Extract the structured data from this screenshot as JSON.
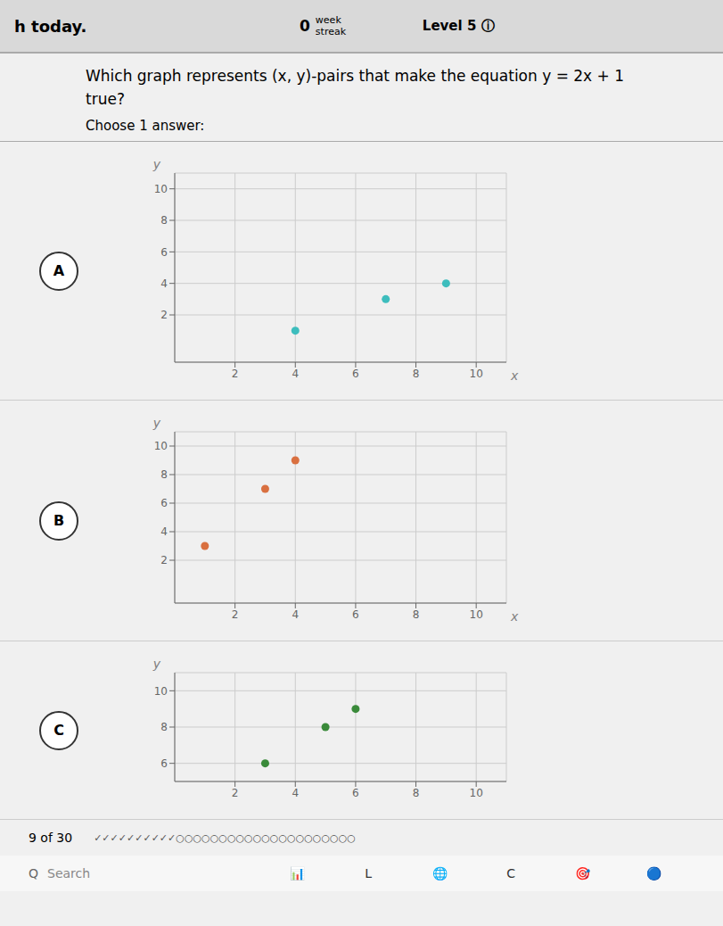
{
  "title": "Which graph represents (x, y)-pairs that make the equation y = 2x + 1\ntrue?",
  "subtitle": "Choose 1 answer:",
  "header_annotations": [
    "h today.",
    "0",
    "week",
    "streak",
    "Level 5 ⓘ"
  ],
  "footer_annotations": [
    "9 of 30",
    "✓✓✓✓✓✓✓✓✓✓○○○○○○○○○○○○○○○○○○○○○"
  ],
  "taskbar_annotations": [
    "Q",
    "Search",
    "📊",
    "L",
    "🌐",
    "C",
    "🎯",
    "🔵"
  ],
  "chart_data": [
    {
      "type": "scatter",
      "title": "A",
      "x_label": "x",
      "y_label": "y",
      "x": [
        4,
        7,
        9
      ],
      "values": [
        1,
        3,
        4
      ],
      "color": "#3dbdbd",
      "xlim": [
        0,
        11
      ],
      "ylim": [
        -1,
        11
      ],
      "xticks": [
        2,
        4,
        6,
        8,
        10
      ],
      "yticks": [
        2,
        4,
        6,
        8,
        10
      ],
      "grid": true
    },
    {
      "type": "scatter",
      "title": "B",
      "x_label": "x",
      "y_label": "y",
      "x": [
        1,
        3,
        4
      ],
      "values": [
        3,
        7,
        9
      ],
      "color": "#d97040",
      "xlim": [
        0,
        11
      ],
      "ylim": [
        -1,
        11
      ],
      "xticks": [
        2,
        4,
        6,
        8,
        10
      ],
      "yticks": [
        2,
        4,
        6,
        8,
        10
      ],
      "grid": true
    },
    {
      "type": "scatter",
      "title": "C",
      "y_label": "y",
      "x": [
        3,
        5,
        6
      ],
      "values": [
        6,
        8,
        9
      ],
      "color": "#3a8a3a",
      "xlim": [
        0,
        11
      ],
      "ylim": [
        5,
        11
      ],
      "xticks": [
        2,
        4,
        6,
        8,
        10
      ],
      "yticks": [
        6,
        8,
        10
      ],
      "grid": true
    }
  ]
}
